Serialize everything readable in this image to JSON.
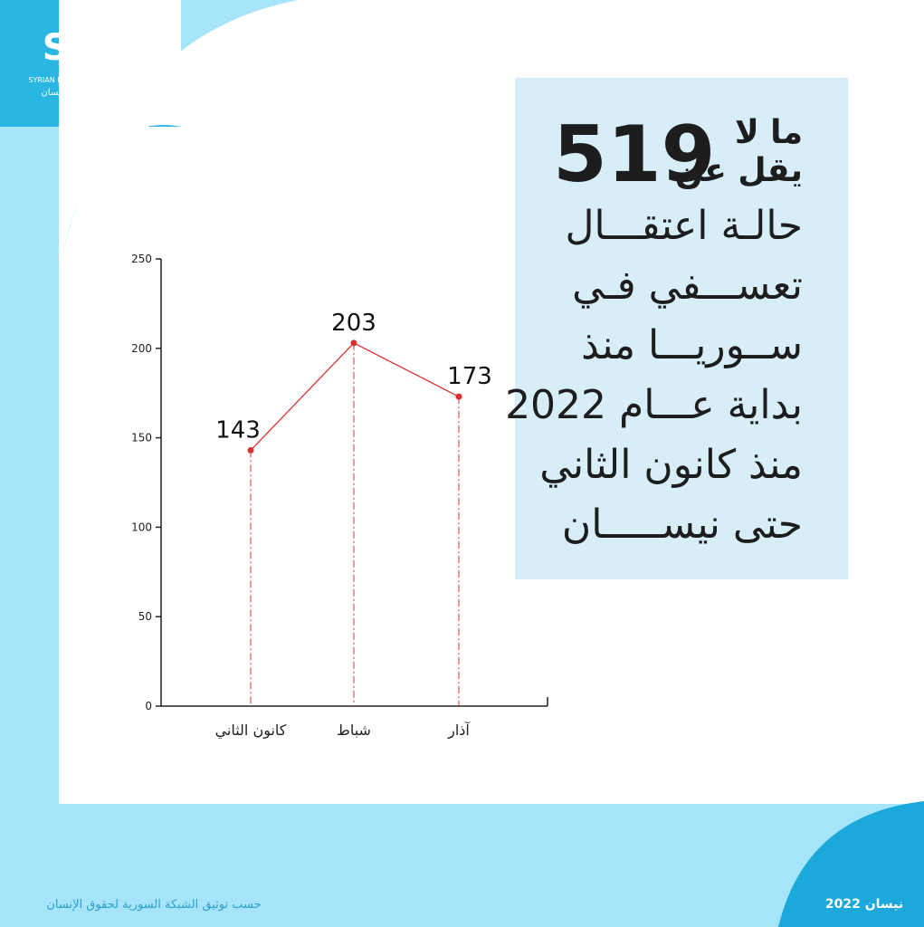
{
  "logo": {
    "name": "SNHR",
    "english": "SYRIAN NETWORK FOR HUMAN RIGHTS",
    "arabic": "الشبكة السورية لحقوق الإنسان"
  },
  "headline": {
    "lead_1": "ما لا",
    "lead_2": "يقل عن",
    "number": 519,
    "lines": [
      "حالـة اعتقـــال",
      "تعســـفي فـي",
      "ســوريـــا منذ",
      "بداية عـــام 2022",
      "منذ كانون الثاني",
      "حتى نيســـــان"
    ]
  },
  "chart_data": {
    "type": "line",
    "categories": [
      "كانون الثاني",
      "شباط",
      "آذار"
    ],
    "values": [
      143,
      203,
      173
    ],
    "color": "#d9312f",
    "ylim": [
      0,
      250
    ],
    "yticks": [
      0,
      50,
      100,
      150,
      200,
      250
    ]
  },
  "footer": {
    "source": "حسب توثيق الشبكة السورية لحقوق الإنسان",
    "date": "نيسان 2022"
  }
}
